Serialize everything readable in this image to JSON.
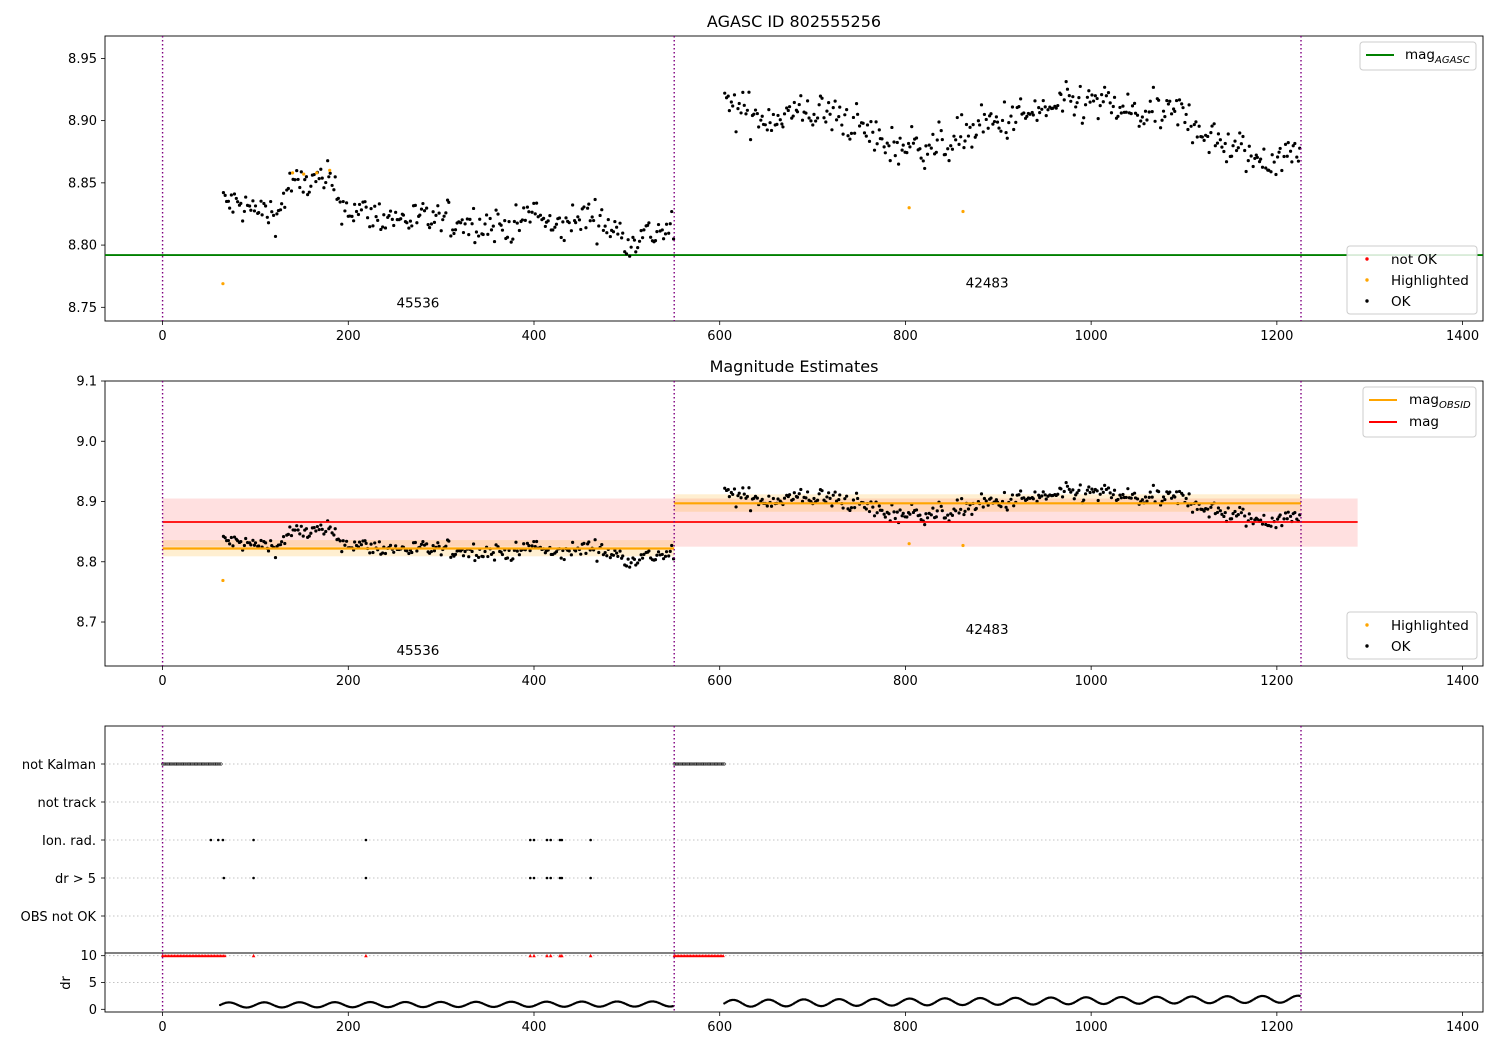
{
  "chart_data": [
    {
      "type": "scatter",
      "title": "AGASC ID 802555256",
      "xlim": [
        -62,
        1422
      ],
      "ylim": [
        8.739,
        8.968
      ],
      "xticks": [
        0,
        200,
        400,
        600,
        800,
        1000,
        1200,
        1400
      ],
      "yticks": [
        8.75,
        8.8,
        8.85,
        8.9,
        8.95
      ],
      "ytick_labels": [
        "8.75",
        "8.80",
        "8.85",
        "8.90",
        "8.95"
      ],
      "obs_boundaries": [
        0,
        551,
        1226
      ],
      "horizontal_lines": [
        {
          "name": "mag_AGASC",
          "y": 8.792,
          "x_range": [
            -62,
            1422
          ],
          "color": "#008000"
        }
      ],
      "segments": [
        {
          "label": "45536",
          "label_xy": [
            275,
            8.75
          ],
          "x_range": [
            65,
            550
          ],
          "trend": [
            [
              65,
              8.835
            ],
            [
              100,
              8.828
            ],
            [
              125,
              8.825
            ],
            [
              135,
              8.848
            ],
            [
              180,
              8.852
            ],
            [
              195,
              8.83
            ],
            [
              240,
              8.822
            ],
            [
              300,
              8.82
            ],
            [
              380,
              8.815
            ],
            [
              400,
              8.828
            ],
            [
              420,
              8.812
            ],
            [
              460,
              8.825
            ],
            [
              500,
              8.805
            ],
            [
              550,
              8.813
            ]
          ],
          "spread": 0.007
        },
        {
          "label": "42483",
          "label_xy": [
            888,
            8.766
          ],
          "x_range": [
            605,
            1225
          ],
          "trend": [
            [
              605,
              8.912
            ],
            [
              650,
              8.902
            ],
            [
              700,
              8.908
            ],
            [
              740,
              8.9
            ],
            [
              780,
              8.88
            ],
            [
              840,
              8.88
            ],
            [
              880,
              8.895
            ],
            [
              960,
              8.91
            ],
            [
              1000,
              8.915
            ],
            [
              1050,
              8.905
            ],
            [
              1100,
              8.905
            ],
            [
              1130,
              8.885
            ],
            [
              1180,
              8.868
            ],
            [
              1225,
              8.875
            ]
          ],
          "spread": 0.008
        }
      ],
      "highlighted_points": [
        [
          65,
          8.769
        ],
        [
          140,
          8.858
        ],
        [
          152,
          8.857
        ],
        [
          166,
          8.858
        ],
        [
          180,
          8.86
        ],
        [
          804,
          8.83
        ],
        [
          862,
          8.827
        ]
      ],
      "legends": [
        {
          "position": "top-right",
          "entries": [
            {
              "label": "mag",
              "sub": "AGASC",
              "kind": "line",
              "color": "#008000"
            }
          ]
        },
        {
          "position": "bottom-right",
          "entries": [
            {
              "label": "not OK",
              "kind": "marker",
              "color": "#ff0000"
            },
            {
              "label": "Highlighted",
              "kind": "marker",
              "color": "#ffa500"
            },
            {
              "label": "OK",
              "kind": "marker",
              "color": "#000000"
            }
          ]
        }
      ]
    },
    {
      "type": "scatter",
      "title": "Magnitude Estimates",
      "xlim": [
        -62,
        1422
      ],
      "ylim": [
        8.627,
        9.1
      ],
      "xticks": [
        0,
        200,
        400,
        600,
        800,
        1000,
        1200,
        1400
      ],
      "yticks": [
        8.7,
        8.8,
        8.9,
        9.0,
        9.1
      ],
      "ytick_labels": [
        "8.7",
        "8.8",
        "8.9",
        "9.0",
        "9.1"
      ],
      "obs_boundaries": [
        0,
        551,
        1226
      ],
      "bands": [
        {
          "name": "mag",
          "x_range": [
            0,
            1287
          ],
          "y_range": [
            8.825,
            8.905
          ],
          "color": "#ff0000",
          "opacity": 0.12
        }
      ],
      "horizontal_lines": [
        {
          "name": "mag",
          "y": 8.866,
          "x_range": [
            0,
            1287
          ],
          "color": "#ff0000"
        }
      ],
      "obsid_lines": [
        {
          "x_range": [
            0,
            551
          ],
          "y": 8.822,
          "band": [
            8.809,
            8.836
          ]
        },
        {
          "x_range": [
            551,
            1226
          ],
          "y": 8.897,
          "band": [
            8.883,
            8.912
          ]
        }
      ],
      "segments": [
        {
          "label": "45536",
          "label_xy": [
            275,
            8.645
          ],
          "x_range": [
            65,
            550
          ]
        },
        {
          "label": "42483",
          "label_xy": [
            888,
            8.68
          ],
          "x_range": [
            605,
            1225
          ]
        }
      ],
      "highlighted_points": [
        [
          65,
          8.769
        ],
        [
          804,
          8.83
        ],
        [
          862,
          8.827
        ]
      ],
      "legends": [
        {
          "position": "top-right",
          "entries": [
            {
              "label": "mag",
              "sub": "OBSID",
              "kind": "line",
              "color": "#ffa500"
            },
            {
              "label": "mag",
              "kind": "line",
              "color": "#ff0000"
            }
          ]
        },
        {
          "position": "bottom-right",
          "entries": [
            {
              "label": "Highlighted",
              "kind": "marker",
              "color": "#ffa500"
            },
            {
              "label": "OK",
              "kind": "marker",
              "color": "#000000"
            }
          ]
        }
      ]
    },
    {
      "type": "scatter",
      "title": "",
      "xlim": [
        -62,
        1422
      ],
      "xticks": [
        0,
        200,
        400,
        600,
        800,
        1000,
        1200,
        1400
      ],
      "obs_boundaries": [
        0,
        551,
        1226
      ],
      "flag_rows": [
        "not Kalman",
        "not track",
        "Ion. rad.",
        "dr > 5",
        "OBS not OK"
      ],
      "flags": {
        "not Kalman": {
          "ranges": [
            [
              0,
              64
            ],
            [
              551,
              605
            ]
          ]
        },
        "not track": {
          "ranges": []
        },
        "Ion. rad.": {
          "points": [
            52,
            60,
            65,
            98,
            219,
            396,
            400,
            414,
            418,
            428,
            430,
            461
          ]
        },
        "dr > 5": {
          "points": [
            66,
            98,
            219,
            396,
            400,
            414,
            418,
            428,
            430,
            461
          ]
        },
        "OBS not OK": {
          "points": []
        }
      }
    },
    {
      "type": "scatter",
      "title": "",
      "ylabel": "dr",
      "xlim": [
        -62,
        1422
      ],
      "ylim": [
        -0.5,
        10.5
      ],
      "xticks": [
        0,
        200,
        400,
        600,
        800,
        1000,
        1200,
        1400
      ],
      "yticks": [
        0,
        5,
        10
      ],
      "obs_boundaries": [
        0,
        551,
        1226
      ],
      "clipped_markers": {
        "value": 10,
        "ranges": [
          [
            0,
            68
          ],
          [
            551,
            605
          ]
        ],
        "points": [
          98,
          219,
          396,
          400,
          414,
          418,
          428,
          430,
          461
        ],
        "color": "#ff0000"
      },
      "dr_segments": [
        {
          "x_range": [
            62,
            550
          ],
          "base": 0.8,
          "amp": 0.6
        },
        {
          "x_range": [
            605,
            1225
          ],
          "base": 1.1,
          "amp": 0.8
        }
      ]
    }
  ],
  "colors": {
    "ok": "#000000",
    "highlighted": "#ffa500",
    "not_ok": "#ff0000",
    "boundary": "#800080",
    "agasc": "#008000",
    "obsid": "#ffa500",
    "mag": "#ff0000"
  }
}
